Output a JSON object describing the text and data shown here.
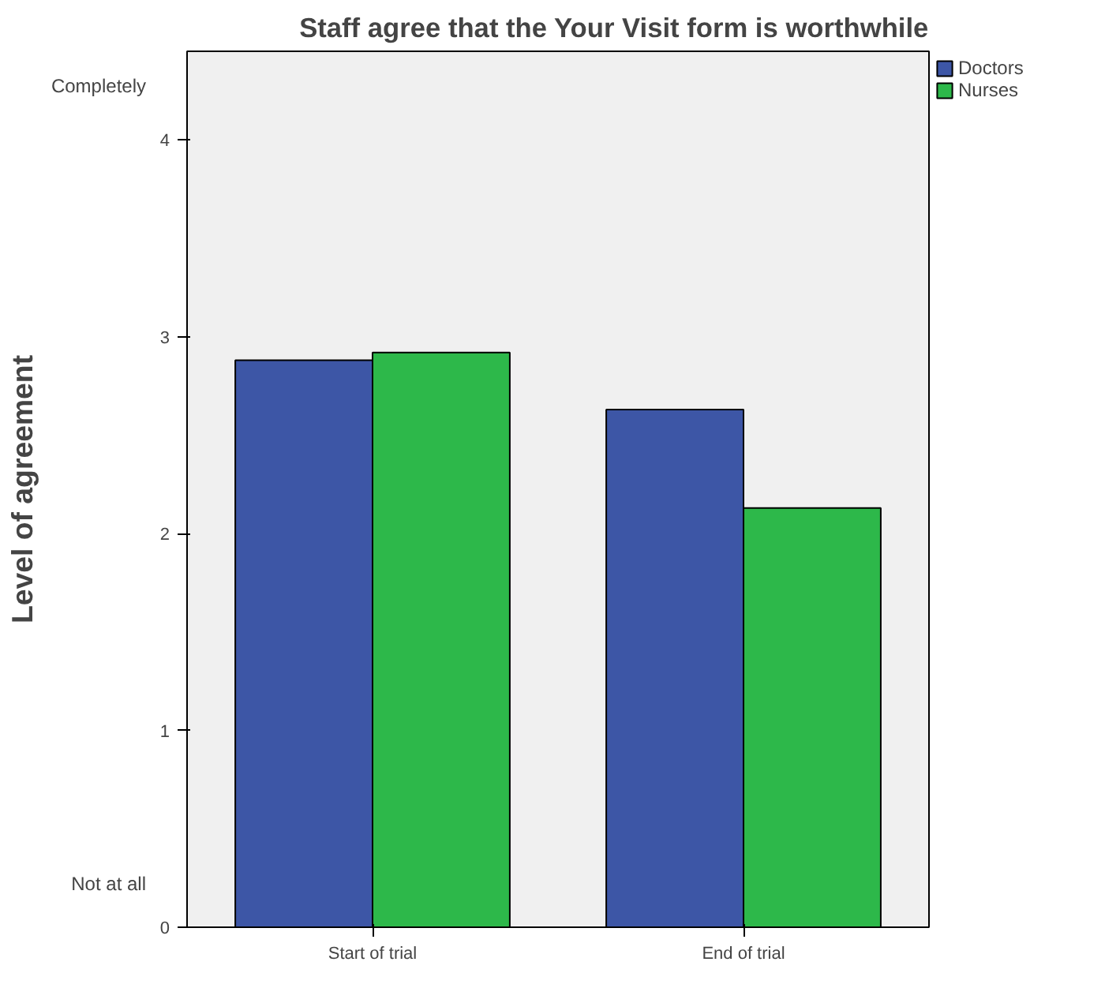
{
  "chart_data": {
    "type": "bar",
    "title": "Staff agree that the Your Visit form is worthwhile",
    "ylabel": "Level of agreement",
    "categories": [
      "Start of trial",
      "End of trial"
    ],
    "series": [
      {
        "name": "Doctors",
        "color": "#3d56a6",
        "values": [
          2.88,
          2.63
        ]
      },
      {
        "name": "Nurses",
        "color": "#2db84a",
        "values": [
          2.92,
          2.13
        ]
      }
    ],
    "ylim": [
      0,
      4.45
    ],
    "yticks": [
      0,
      1,
      2,
      3,
      4
    ],
    "grid": false,
    "legend": "top right",
    "annotations": [
      "Completely",
      "Not at all"
    ]
  }
}
